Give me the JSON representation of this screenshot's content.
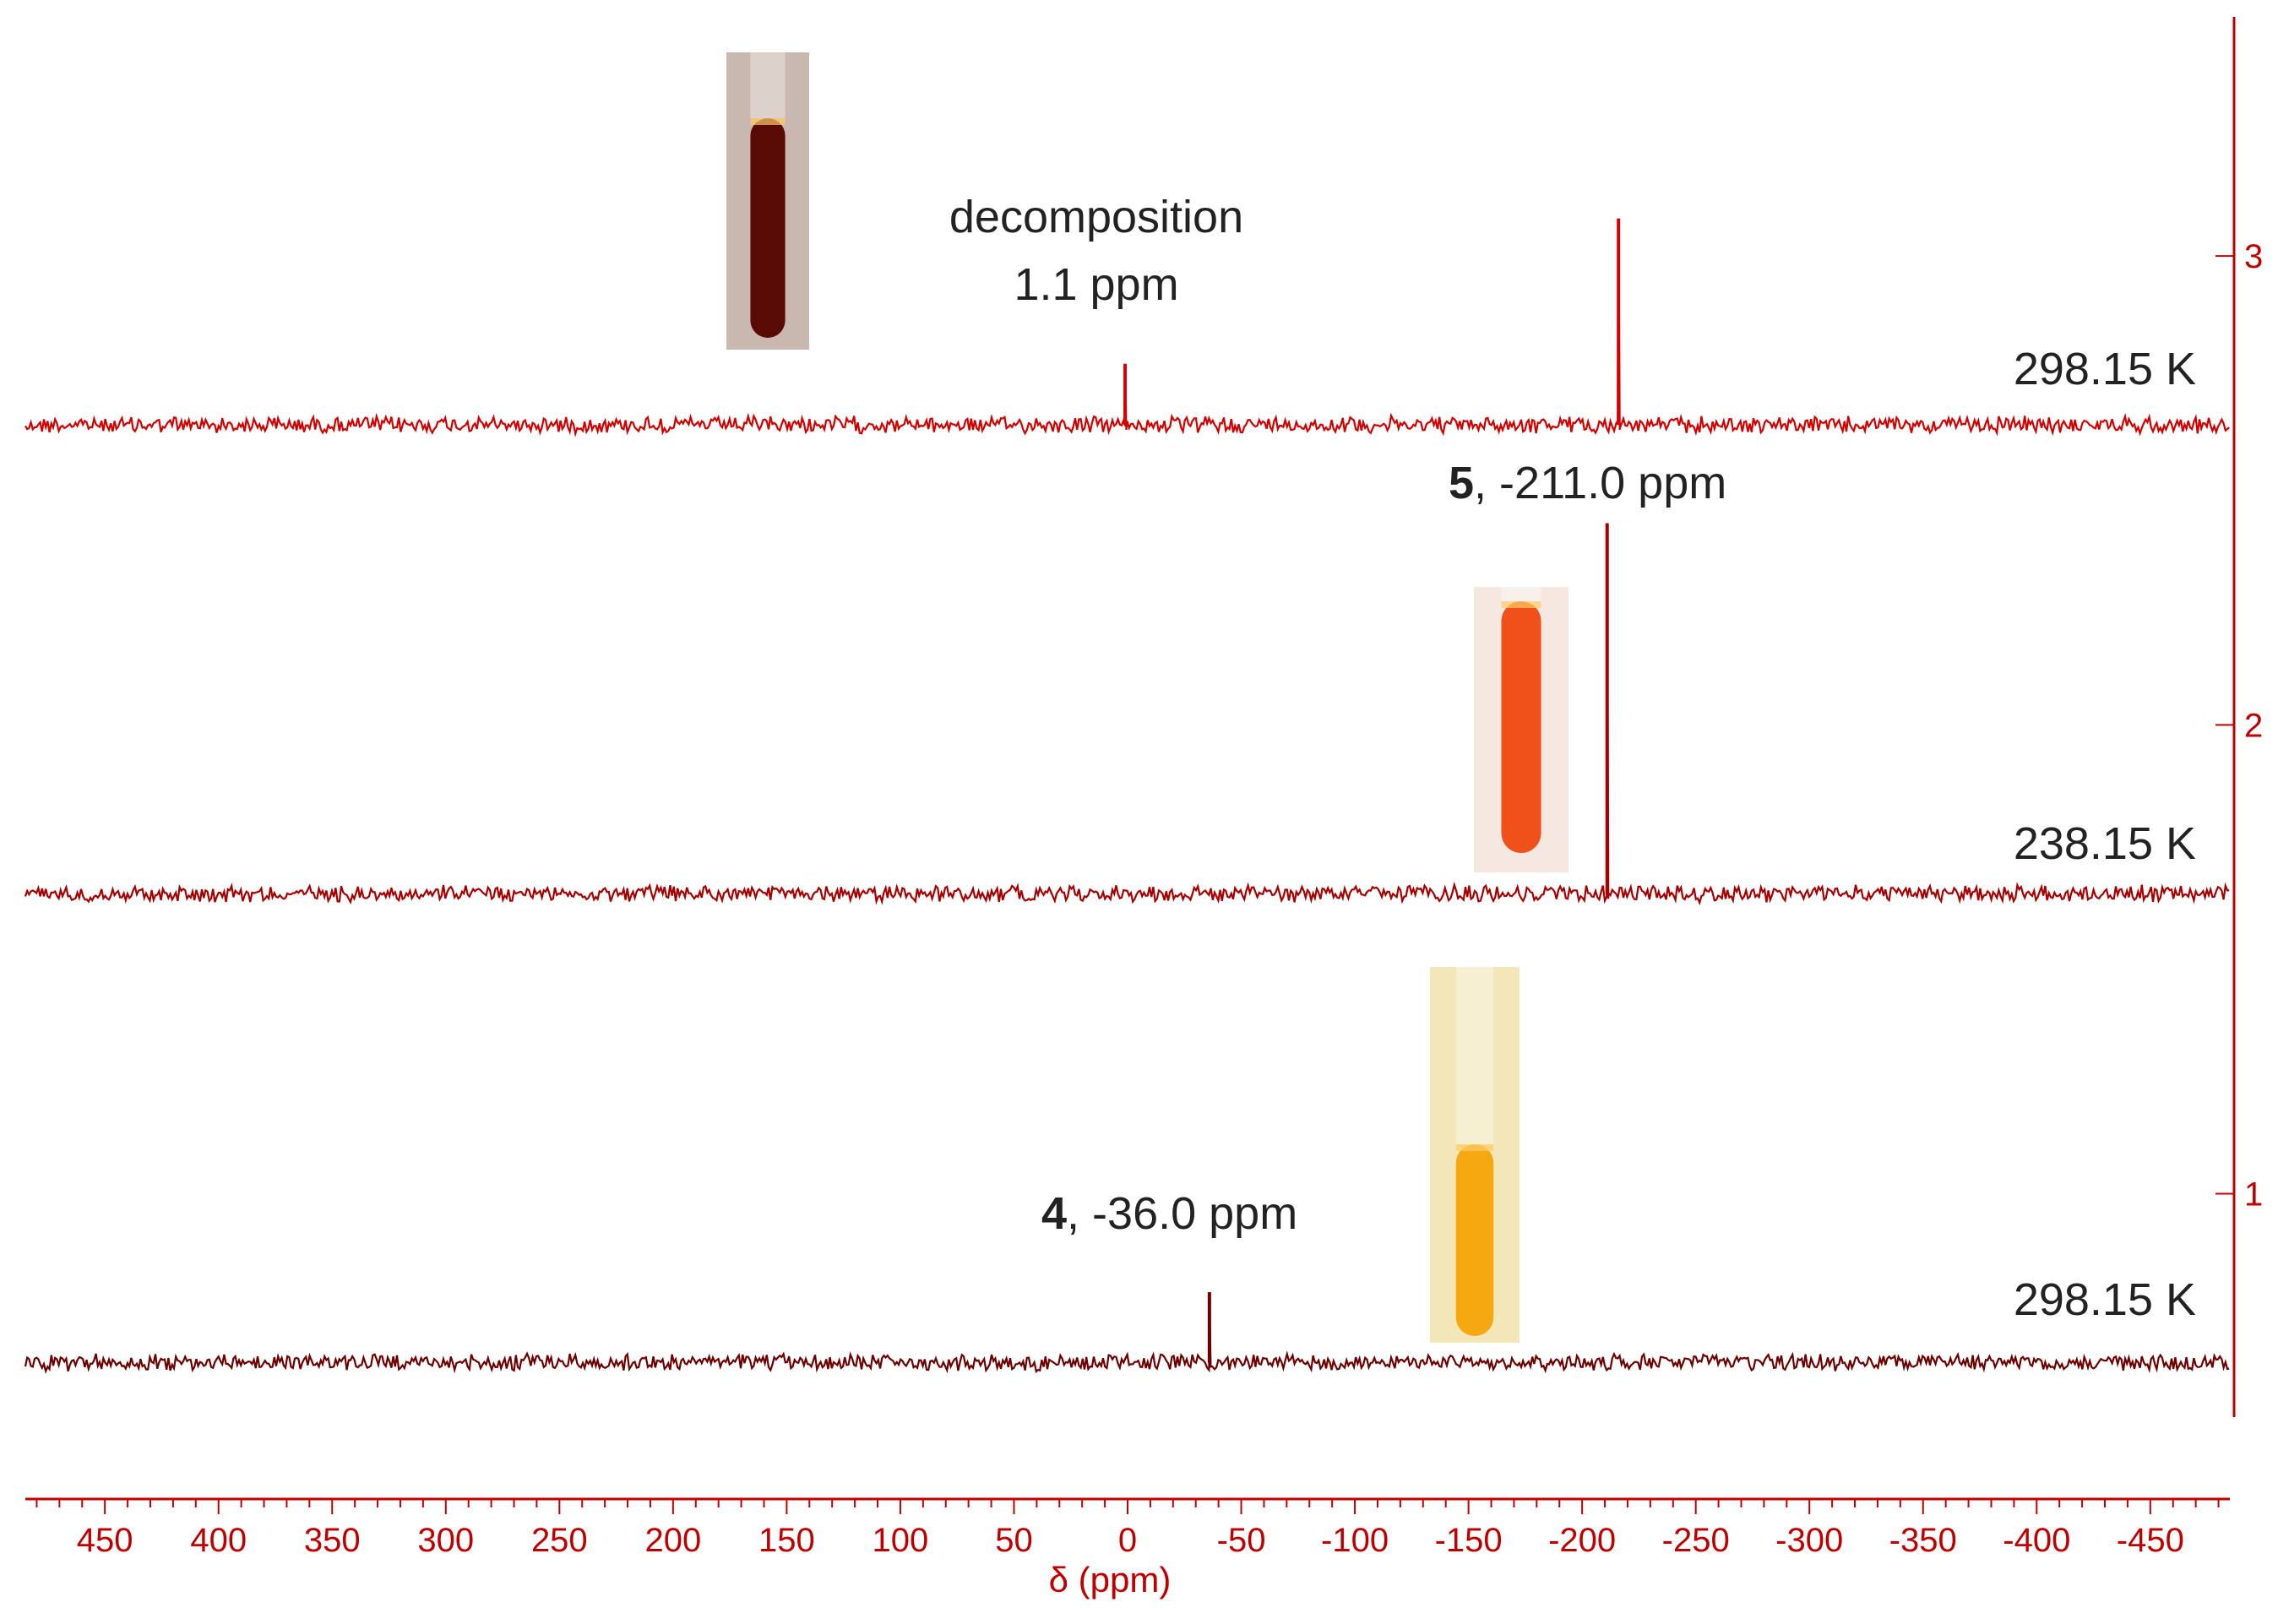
{
  "chart_data": {
    "type": "line",
    "title": "",
    "xlabel": "δ (ppm)",
    "xlim": [
      485,
      -485
    ],
    "x_ticks": [
      450,
      400,
      350,
      300,
      250,
      200,
      150,
      100,
      50,
      0,
      -50,
      -100,
      -150,
      -200,
      -250,
      -300,
      -350,
      -400,
      -450
    ],
    "x_tick_labels": [
      "450",
      "400",
      "350",
      "300",
      "250",
      "200",
      "150",
      "100",
      "50",
      "0",
      "-50",
      "-100",
      "-150",
      "-200",
      "-250",
      "-300",
      "-350",
      "-400",
      "-450"
    ],
    "right_axis": {
      "ticks": [
        3,
        2,
        1
      ],
      "tick_labels": [
        "3",
        "2",
        "1"
      ],
      "range": [
        0.52,
        3.51
      ]
    },
    "grid": false,
    "series": [
      {
        "temperature_label": "298.15 K",
        "baseline": 2.64,
        "color": "#d40000",
        "peaks": [
          {
            "x": 1.1,
            "height": 0.13
          },
          {
            "x": -216.0,
            "height": 0.44
          }
        ]
      },
      {
        "temperature_label": "238.15 K",
        "baseline": 1.64,
        "color": "#a80000",
        "peaks": [
          {
            "x": -211.0,
            "height": 0.79
          }
        ]
      },
      {
        "temperature_label": "298.15 K",
        "baseline": 0.64,
        "color": "#6e0000",
        "peaks": [
          {
            "x": -36.0,
            "height": 0.15
          }
        ]
      }
    ],
    "annotations": [
      {
        "text_line1": "decomposition",
        "text_line2": "1.1 ppm"
      },
      {
        "bold": "5",
        "text": ", -211.0 ppm"
      },
      {
        "bold": "4",
        "text": ", -36.0 ppm"
      }
    ],
    "sample_photos": [
      {
        "liquid_color": "#5a0a05",
        "glass_color": "#c9b8b0"
      },
      {
        "liquid_color": "#f0501a",
        "glass_color": "#f5e8e0"
      },
      {
        "liquid_color": "#f5a810",
        "glass_color": "#f3e6b8"
      }
    ],
    "axis_color": "#c00000"
  }
}
